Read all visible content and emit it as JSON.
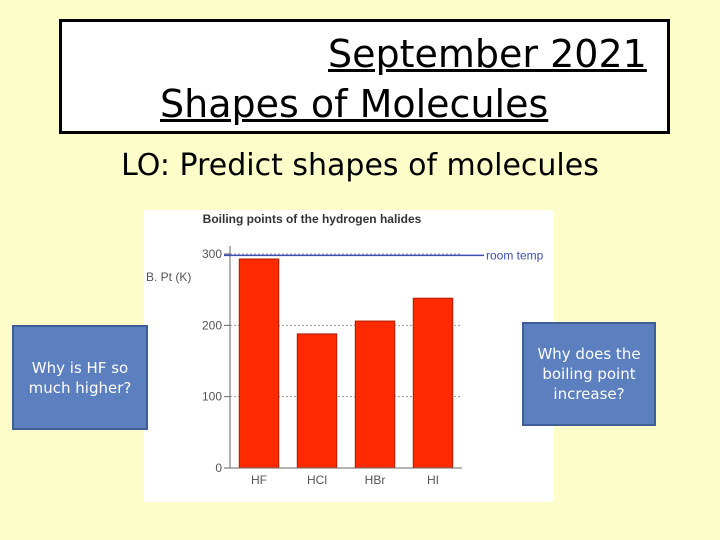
{
  "slide": {
    "title_line1": "September 2021",
    "title_line2": "Shapes of Molecules",
    "objective": "LO: Predict shapes of molecules",
    "question_left": "Why is HF so much higher?",
    "question_right": "Why does the boiling point increase?"
  },
  "colors": {
    "background": "#fdfdc9",
    "bar": "#ff2a00",
    "room_temp_line": "#3a4fb8",
    "question_box": "#5b7fbf"
  },
  "chart_data": {
    "type": "bar",
    "title": "Boiling points of the hydrogen halides",
    "ylabel": "B. Pt (K)",
    "categories": [
      "HF",
      "HCl",
      "HBr",
      "HI"
    ],
    "values": [
      293,
      188,
      206,
      238
    ],
    "ylim": [
      0,
      300
    ],
    "yticks": [
      0,
      100,
      200,
      300
    ],
    "grid": true,
    "reference_line": {
      "label": "room temp",
      "value": 298
    }
  }
}
